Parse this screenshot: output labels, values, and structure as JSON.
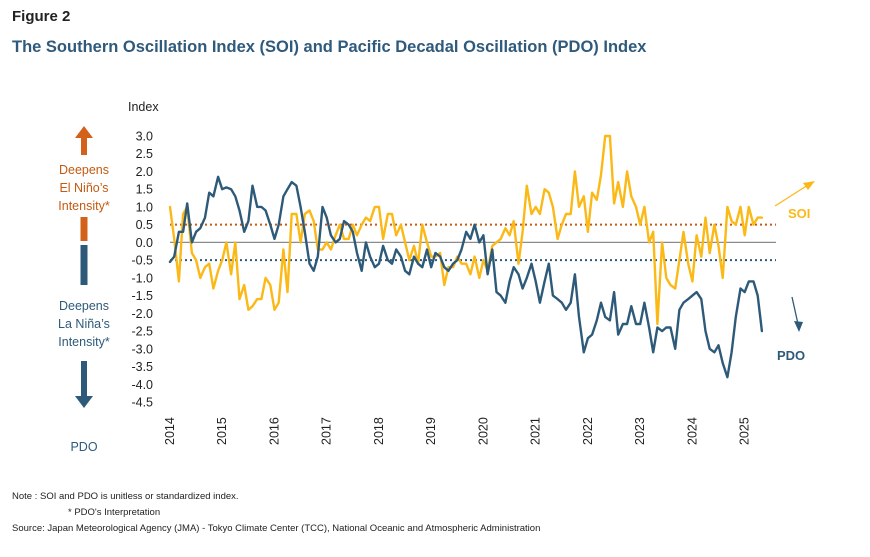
{
  "figure_label": "Figure 2",
  "title": "The Southern Oscillation Index (SOI) and Pacific Decadal Oscillation (PDO) Index",
  "side_labels": {
    "el_nino": [
      "Deepens",
      "El Niño’s",
      "Intensity*"
    ],
    "la_nina": [
      "Deepens",
      "La Niña’s",
      "Intensity*"
    ],
    "pdo": "PDO"
  },
  "notes": {
    "line1": "Note :    SOI and PDO is unitless or standardized index.",
    "line2": "* PDO's Interpretation",
    "source": "Source: Japan Meteorological Agency (JMA) - Tokyo Climate Center (TCC), National Oceanic and Atmospheric Administration"
  },
  "colors": {
    "soi": "#fbb917",
    "pdo": "#2e5a7a",
    "el_nino_arrow": "#d4611a",
    "threshold_pos": "#c55a11",
    "threshold_neg": "#2e5a7a",
    "zero_line": "#8c8c8c"
  },
  "chart_data": {
    "type": "line",
    "ylabel": "Index",
    "ylim": [
      -4.5,
      3.0
    ],
    "yticks": [
      "3.0",
      "2.5",
      "2.0",
      "1.5",
      "1.0",
      "0.5",
      "0.0",
      "-0.5",
      "-1.0",
      "-1.5",
      "-2.0",
      "-2.5",
      "-3.0",
      "-3.5",
      "-4.0",
      "-4.5"
    ],
    "x_range": [
      2014.0,
      2025.6
    ],
    "xticks": [
      "2014",
      "2015",
      "2016",
      "2017",
      "2018",
      "2019",
      "2020",
      "2021",
      "2022",
      "2023",
      "2024",
      "2025"
    ],
    "reference_lines": [
      {
        "name": "SOI threshold",
        "value": 0.5
      },
      {
        "name": "PDO threshold",
        "value": -0.5
      },
      {
        "name": "Zero",
        "value": 0.0
      }
    ],
    "series": [
      {
        "name": "SOI",
        "label": "SOI",
        "points": [
          [
            2014.0,
            1.0
          ],
          [
            2014.08,
            0.1
          ],
          [
            2014.17,
            -1.1
          ],
          [
            2014.25,
            0.8
          ],
          [
            2014.33,
            1.0
          ],
          [
            2014.42,
            -0.3
          ],
          [
            2014.5,
            -0.5
          ],
          [
            2014.58,
            -1.0
          ],
          [
            2014.67,
            -0.7
          ],
          [
            2014.75,
            -0.6
          ],
          [
            2014.83,
            -1.3
          ],
          [
            2014.92,
            -0.8
          ],
          [
            2015.0,
            -0.5
          ],
          [
            2015.08,
            0.0
          ],
          [
            2015.17,
            -0.9
          ],
          [
            2015.25,
            0.0
          ],
          [
            2015.33,
            -1.6
          ],
          [
            2015.42,
            -1.2
          ],
          [
            2015.5,
            -1.9
          ],
          [
            2015.58,
            -1.8
          ],
          [
            2015.67,
            -1.6
          ],
          [
            2015.75,
            -1.6
          ],
          [
            2015.83,
            -1.0
          ],
          [
            2015.92,
            -1.2
          ],
          [
            2016.0,
            -1.9
          ],
          [
            2016.08,
            -1.7
          ],
          [
            2016.17,
            -0.2
          ],
          [
            2016.25,
            -1.4
          ],
          [
            2016.33,
            0.8
          ],
          [
            2016.42,
            0.8
          ],
          [
            2016.5,
            0.0
          ],
          [
            2016.58,
            0.8
          ],
          [
            2016.67,
            0.9
          ],
          [
            2016.75,
            0.6
          ],
          [
            2016.83,
            -0.2
          ],
          [
            2016.92,
            -0.2
          ],
          [
            2017.0,
            0.0
          ],
          [
            2017.08,
            -0.2
          ],
          [
            2017.17,
            0.2
          ],
          [
            2017.25,
            0.5
          ],
          [
            2017.33,
            0.1
          ],
          [
            2017.42,
            0.1
          ],
          [
            2017.5,
            0.5
          ],
          [
            2017.58,
            0.2
          ],
          [
            2017.67,
            0.5
          ],
          [
            2017.75,
            0.7
          ],
          [
            2017.83,
            0.6
          ],
          [
            2017.92,
            1.0
          ],
          [
            2018.0,
            1.0
          ],
          [
            2018.08,
            0.1
          ],
          [
            2018.17,
            0.8
          ],
          [
            2018.25,
            0.8
          ],
          [
            2018.33,
            0.2
          ],
          [
            2018.42,
            0.5
          ],
          [
            2018.5,
            0.0
          ],
          [
            2018.58,
            -0.5
          ],
          [
            2018.67,
            -0.1
          ],
          [
            2018.75,
            -0.6
          ],
          [
            2018.83,
            0.5
          ],
          [
            2018.92,
            0.0
          ],
          [
            2019.0,
            -0.4
          ],
          [
            2019.08,
            -0.4
          ],
          [
            2019.17,
            -0.3
          ],
          [
            2019.25,
            -1.2
          ],
          [
            2019.33,
            -0.7
          ],
          [
            2019.42,
            -0.7
          ],
          [
            2019.5,
            -0.4
          ],
          [
            2019.58,
            -0.6
          ],
          [
            2019.67,
            -0.6
          ],
          [
            2019.75,
            -0.9
          ],
          [
            2019.83,
            -0.4
          ],
          [
            2019.92,
            -1.0
          ],
          [
            2020.0,
            -0.5
          ],
          [
            2020.08,
            -0.8
          ],
          [
            2020.17,
            -0.1
          ],
          [
            2020.25,
            0.0
          ],
          [
            2020.33,
            0.1
          ],
          [
            2020.42,
            0.4
          ],
          [
            2020.5,
            0.2
          ],
          [
            2020.58,
            0.6
          ],
          [
            2020.67,
            -0.6
          ],
          [
            2020.75,
            0.3
          ],
          [
            2020.83,
            1.6
          ],
          [
            2020.92,
            0.8
          ],
          [
            2021.0,
            1.0
          ],
          [
            2021.08,
            0.8
          ],
          [
            2021.17,
            1.5
          ],
          [
            2021.25,
            1.4
          ],
          [
            2021.33,
            1.0
          ],
          [
            2021.42,
            0.1
          ],
          [
            2021.5,
            0.5
          ],
          [
            2021.58,
            0.8
          ],
          [
            2021.67,
            0.8
          ],
          [
            2021.75,
            2.0
          ],
          [
            2021.83,
            1.0
          ],
          [
            2021.92,
            1.3
          ],
          [
            2022.0,
            0.3
          ],
          [
            2022.08,
            1.4
          ],
          [
            2022.17,
            1.2
          ],
          [
            2022.25,
            1.9
          ],
          [
            2022.33,
            3.0
          ],
          [
            2022.42,
            3.0
          ],
          [
            2022.5,
            1.1
          ],
          [
            2022.58,
            1.7
          ],
          [
            2022.67,
            1.0
          ],
          [
            2022.75,
            2.0
          ],
          [
            2022.83,
            1.3
          ],
          [
            2022.92,
            1.0
          ],
          [
            2023.0,
            0.5
          ],
          [
            2023.08,
            1.0
          ],
          [
            2023.17,
            0.0
          ],
          [
            2023.25,
            0.3
          ],
          [
            2023.33,
            -2.3
          ],
          [
            2023.42,
            0.0
          ],
          [
            2023.5,
            -1.0
          ],
          [
            2023.58,
            -1.2
          ],
          [
            2023.67,
            -1.3
          ],
          [
            2023.75,
            -0.5
          ],
          [
            2023.83,
            0.3
          ],
          [
            2023.92,
            -0.6
          ],
          [
            2024.0,
            -1.1
          ],
          [
            2024.08,
            0.2
          ],
          [
            2024.17,
            -0.4
          ],
          [
            2024.25,
            0.7
          ],
          [
            2024.33,
            -0.3
          ],
          [
            2024.42,
            0.5
          ],
          [
            2024.5,
            -0.1
          ],
          [
            2024.58,
            -1.0
          ],
          [
            2024.67,
            1.0
          ],
          [
            2024.75,
            0.6
          ],
          [
            2024.83,
            0.5
          ],
          [
            2024.92,
            1.0
          ],
          [
            2025.0,
            0.2
          ],
          [
            2025.08,
            1.0
          ],
          [
            2025.17,
            0.5
          ],
          [
            2025.25,
            0.7
          ],
          [
            2025.33,
            0.7
          ]
        ]
      },
      {
        "name": "PDO",
        "label": "PDO",
        "points": [
          [
            2014.0,
            -0.55
          ],
          [
            2014.08,
            -0.4
          ],
          [
            2014.17,
            0.3
          ],
          [
            2014.25,
            0.3
          ],
          [
            2014.33,
            1.1
          ],
          [
            2014.42,
            0.0
          ],
          [
            2014.5,
            0.3
          ],
          [
            2014.58,
            0.4
          ],
          [
            2014.67,
            0.7
          ],
          [
            2014.75,
            1.4
          ],
          [
            2014.83,
            1.3
          ],
          [
            2014.92,
            1.85
          ],
          [
            2015.0,
            1.5
          ],
          [
            2015.08,
            1.55
          ],
          [
            2015.17,
            1.5
          ],
          [
            2015.25,
            1.3
          ],
          [
            2015.33,
            0.9
          ],
          [
            2015.42,
            0.3
          ],
          [
            2015.5,
            0.6
          ],
          [
            2015.58,
            1.6
          ],
          [
            2015.67,
            1.0
          ],
          [
            2015.75,
            1.0
          ],
          [
            2015.83,
            0.9
          ],
          [
            2015.92,
            0.5
          ],
          [
            2016.0,
            0.1
          ],
          [
            2016.08,
            0.5
          ],
          [
            2016.17,
            1.3
          ],
          [
            2016.25,
            1.5
          ],
          [
            2016.33,
            1.7
          ],
          [
            2016.42,
            1.6
          ],
          [
            2016.5,
            1.0
          ],
          [
            2016.58,
            0.3
          ],
          [
            2016.67,
            -0.6
          ],
          [
            2016.75,
            -0.8
          ],
          [
            2016.83,
            -0.4
          ],
          [
            2016.92,
            1.0
          ],
          [
            2017.0,
            0.7
          ],
          [
            2017.08,
            0.2
          ],
          [
            2017.17,
            0.0
          ],
          [
            2017.25,
            0.1
          ],
          [
            2017.33,
            0.6
          ],
          [
            2017.42,
            0.5
          ],
          [
            2017.5,
            0.3
          ],
          [
            2017.58,
            -0.3
          ],
          [
            2017.67,
            -0.8
          ],
          [
            2017.75,
            0.0
          ],
          [
            2017.83,
            -0.4
          ],
          [
            2017.92,
            -0.7
          ],
          [
            2018.0,
            -0.6
          ],
          [
            2018.08,
            -0.1
          ],
          [
            2018.17,
            -0.5
          ],
          [
            2018.25,
            -0.6
          ],
          [
            2018.33,
            -0.2
          ],
          [
            2018.42,
            -0.4
          ],
          [
            2018.5,
            -0.8
          ],
          [
            2018.58,
            -0.9
          ],
          [
            2018.67,
            -0.4
          ],
          [
            2018.75,
            -0.6
          ],
          [
            2018.83,
            -0.7
          ],
          [
            2018.92,
            -0.2
          ],
          [
            2019.0,
            -0.7
          ],
          [
            2019.08,
            -0.3
          ],
          [
            2019.17,
            -0.4
          ],
          [
            2019.25,
            -0.7
          ],
          [
            2019.33,
            -0.8
          ],
          [
            2019.42,
            -0.6
          ],
          [
            2019.5,
            -0.5
          ],
          [
            2019.58,
            -0.2
          ],
          [
            2019.67,
            0.3
          ],
          [
            2019.75,
            0.1
          ],
          [
            2019.83,
            0.5
          ],
          [
            2019.92,
            0.0
          ],
          [
            2020.0,
            0.2
          ],
          [
            2020.08,
            -0.9
          ],
          [
            2020.17,
            -0.2
          ],
          [
            2020.25,
            -1.4
          ],
          [
            2020.33,
            -1.5
          ],
          [
            2020.42,
            -1.7
          ],
          [
            2020.5,
            -1.1
          ],
          [
            2020.58,
            -0.7
          ],
          [
            2020.67,
            -0.9
          ],
          [
            2020.75,
            -1.3
          ],
          [
            2020.83,
            -1.0
          ],
          [
            2020.92,
            -0.6
          ],
          [
            2021.0,
            -1.1
          ],
          [
            2021.08,
            -1.7
          ],
          [
            2021.17,
            -1.1
          ],
          [
            2021.25,
            -0.6
          ],
          [
            2021.33,
            -1.5
          ],
          [
            2021.42,
            -1.6
          ],
          [
            2021.5,
            -1.7
          ],
          [
            2021.58,
            -1.9
          ],
          [
            2021.67,
            -1.7
          ],
          [
            2021.75,
            -0.9
          ],
          [
            2021.83,
            -2.1
          ],
          [
            2021.92,
            -3.1
          ],
          [
            2022.0,
            -2.7
          ],
          [
            2022.08,
            -2.6
          ],
          [
            2022.17,
            -2.2
          ],
          [
            2022.25,
            -1.7
          ],
          [
            2022.33,
            -2.1
          ],
          [
            2022.42,
            -2.2
          ],
          [
            2022.5,
            -1.4
          ],
          [
            2022.58,
            -2.6
          ],
          [
            2022.67,
            -2.3
          ],
          [
            2022.75,
            -2.3
          ],
          [
            2022.83,
            -1.8
          ],
          [
            2022.92,
            -2.3
          ],
          [
            2023.0,
            -2.3
          ],
          [
            2023.08,
            -1.7
          ],
          [
            2023.17,
            -2.4
          ],
          [
            2023.25,
            -3.1
          ],
          [
            2023.33,
            -2.4
          ],
          [
            2023.42,
            -2.5
          ],
          [
            2023.5,
            -2.4
          ],
          [
            2023.58,
            -2.4
          ],
          [
            2023.67,
            -3.0
          ],
          [
            2023.75,
            -1.9
          ],
          [
            2023.83,
            -1.7
          ],
          [
            2023.92,
            -1.6
          ],
          [
            2024.0,
            -1.5
          ],
          [
            2024.08,
            -1.4
          ],
          [
            2024.17,
            -1.6
          ],
          [
            2024.25,
            -2.5
          ],
          [
            2024.33,
            -3.0
          ],
          [
            2024.42,
            -3.1
          ],
          [
            2024.5,
            -2.9
          ],
          [
            2024.58,
            -3.4
          ],
          [
            2024.67,
            -3.8
          ],
          [
            2024.75,
            -3.1
          ],
          [
            2024.83,
            -2.1
          ],
          [
            2024.92,
            -1.3
          ],
          [
            2025.0,
            -1.4
          ],
          [
            2025.08,
            -1.1
          ],
          [
            2025.17,
            -1.1
          ],
          [
            2025.25,
            -1.5
          ],
          [
            2025.33,
            -2.5
          ]
        ]
      }
    ]
  }
}
